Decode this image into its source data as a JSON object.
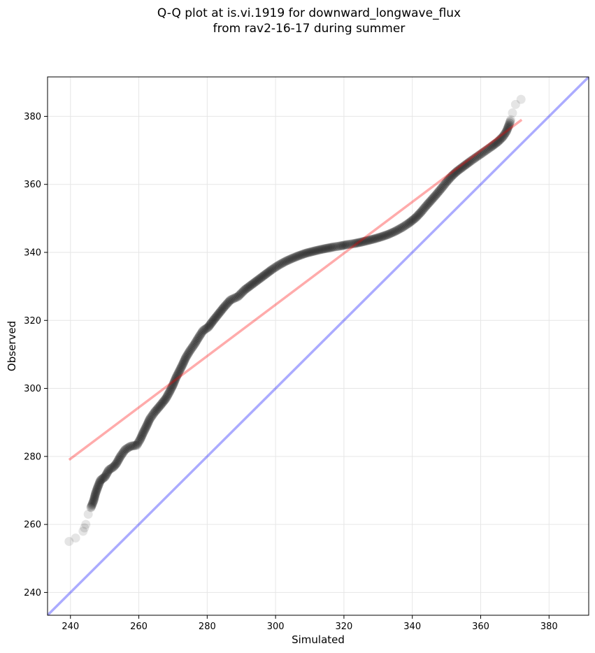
{
  "chart_data": {
    "type": "scatter",
    "title_lines": [
      "Q-Q plot at is.vi.1919 for downward_longwave_flux",
      "from rav2-16-17 during summer"
    ],
    "xlabel": "Simulated",
    "ylabel": "Observed",
    "xlim": [
      233.3,
      391.6
    ],
    "ylim": [
      233.3,
      391.6
    ],
    "xticks": [
      240,
      260,
      280,
      300,
      320,
      340,
      360,
      380
    ],
    "yticks": [
      240,
      260,
      280,
      300,
      320,
      340,
      360,
      380
    ],
    "grid": true,
    "quantile_curve": [
      [
        239.6,
        255
      ],
      [
        241.5,
        256
      ],
      [
        243.7,
        258
      ],
      [
        244.1,
        259
      ],
      [
        244.5,
        260
      ],
      [
        245.2,
        263
      ],
      [
        246.0,
        265
      ],
      [
        246.8,
        267
      ],
      [
        247.3,
        269
      ],
      [
        248.0,
        271
      ],
      [
        248.8,
        273
      ],
      [
        250.1,
        274
      ],
      [
        251.2,
        276
      ],
      [
        252.7,
        277
      ],
      [
        253.5,
        278
      ],
      [
        254.6,
        280
      ],
      [
        256.0,
        282
      ],
      [
        257.6,
        283
      ],
      [
        259.4,
        283.3
      ],
      [
        260.4,
        285
      ],
      [
        261.3,
        287
      ],
      [
        262.3,
        289
      ],
      [
        263.2,
        291
      ],
      [
        264.6,
        293
      ],
      [
        266.3,
        295
      ],
      [
        267.9,
        297
      ],
      [
        269.0,
        299
      ],
      [
        270.0,
        301
      ],
      [
        270.8,
        303
      ],
      [
        271.8,
        305
      ],
      [
        272.8,
        307
      ],
      [
        273.7,
        309
      ],
      [
        274.9,
        311
      ],
      [
        276.3,
        313
      ],
      [
        277.5,
        315
      ],
      [
        278.8,
        317
      ],
      [
        280.3,
        318
      ],
      [
        281.8,
        320
      ],
      [
        283.4,
        322
      ],
      [
        285.0,
        324
      ],
      [
        286.8,
        326
      ],
      [
        289.0,
        327
      ],
      [
        291.0,
        329
      ],
      [
        293.0,
        330.5
      ],
      [
        295.0,
        332
      ],
      [
        297.0,
        333.5
      ],
      [
        299.0,
        335
      ],
      [
        301.0,
        336.3
      ],
      [
        303.0,
        337.4
      ],
      [
        305.0,
        338.3
      ],
      [
        307.0,
        339.1
      ],
      [
        309.0,
        339.8
      ],
      [
        311.0,
        340.3
      ],
      [
        313.0,
        340.8
      ],
      [
        315.0,
        341.2
      ],
      [
        317.0,
        341.6
      ],
      [
        319.0,
        341.9
      ],
      [
        321.0,
        342.3
      ],
      [
        323.0,
        342.6
      ],
      [
        325.0,
        343.0
      ],
      [
        327.0,
        343.5
      ],
      [
        329.0,
        344.0
      ],
      [
        331.0,
        344.6
      ],
      [
        333.0,
        345.3
      ],
      [
        335.0,
        346.2
      ],
      [
        337.0,
        347.3
      ],
      [
        339.0,
        348.6
      ],
      [
        341.0,
        350.2
      ],
      [
        342.5,
        351.8
      ],
      [
        344.0,
        353.6
      ],
      [
        345.5,
        355.3
      ],
      [
        347.0,
        357.0
      ],
      [
        348.5,
        358.8
      ],
      [
        350.0,
        360.7
      ],
      [
        351.5,
        362.4
      ],
      [
        353.0,
        363.8
      ],
      [
        355.0,
        365.3
      ],
      [
        357.0,
        366.8
      ],
      [
        359.0,
        368.2
      ],
      [
        361.0,
        369.6
      ],
      [
        363.0,
        371.0
      ],
      [
        365.0,
        372.5
      ],
      [
        366.5,
        374.0
      ],
      [
        367.5,
        375.5
      ],
      [
        368.3,
        377.5
      ],
      [
        368.8,
        379.0
      ],
      [
        369.3,
        381.0
      ],
      [
        370.2,
        383.5
      ],
      [
        371.8,
        385.0
      ]
    ],
    "fit_line": {
      "x": [
        239.6,
        372.0
      ],
      "y": [
        279.0,
        379.0
      ],
      "color": "#ff0000"
    },
    "identity_line": {
      "color": "#0000ff"
    },
    "point_color": "#000000"
  }
}
